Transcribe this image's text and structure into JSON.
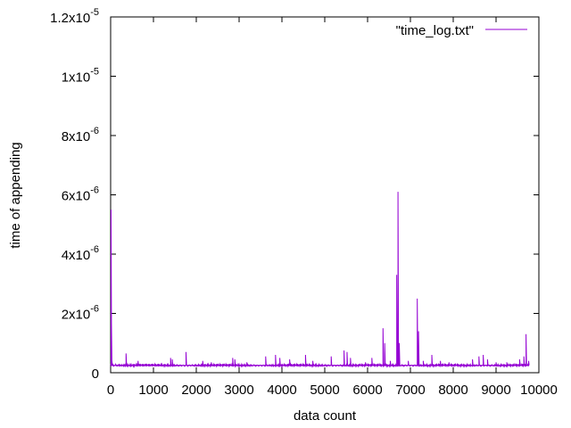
{
  "chart_data": {
    "type": "line",
    "xlabel": "data count",
    "ylabel": "time of appending",
    "xlim": [
      0,
      10000
    ],
    "ylim": [
      0,
      1.2e-05
    ],
    "xticks": [
      {
        "value": 0,
        "label": "0"
      },
      {
        "value": 1000,
        "label": "1000"
      },
      {
        "value": 2000,
        "label": "2000"
      },
      {
        "value": 3000,
        "label": "3000"
      },
      {
        "value": 4000,
        "label": "4000"
      },
      {
        "value": 5000,
        "label": "5000"
      },
      {
        "value": 6000,
        "label": "6000"
      },
      {
        "value": 7000,
        "label": "7000"
      },
      {
        "value": 8000,
        "label": "8000"
      },
      {
        "value": 9000,
        "label": "9000"
      },
      {
        "value": 10000,
        "label": "10000"
      }
    ],
    "yticks": [
      {
        "value": 0,
        "mant": "0",
        "exp": ""
      },
      {
        "value": 2e-06,
        "mant": "2x10",
        "exp": "-6"
      },
      {
        "value": 4e-06,
        "mant": "4x10",
        "exp": "-6"
      },
      {
        "value": 6e-06,
        "mant": "6x10",
        "exp": "-6"
      },
      {
        "value": 8e-06,
        "mant": "8x10",
        "exp": "-6"
      },
      {
        "value": 1e-05,
        "mant": "1x10",
        "exp": "-5"
      },
      {
        "value": 1.2e-05,
        "mant": "1.2x10",
        "exp": "-5"
      }
    ],
    "legend_position": "top-right",
    "grid": false,
    "series": [
      {
        "name": "\"time_log.txt\"",
        "color": "#9400d3",
        "baseline": 2.5e-07,
        "points": [
          [
            0,
            3e-07
          ],
          [
            10,
            5.5e-06
          ],
          [
            18,
            1.8e-06
          ],
          [
            30,
            4e-07
          ],
          [
            50,
            3e-07
          ],
          [
            120,
            2.8e-07
          ],
          [
            200,
            3e-07
          ],
          [
            300,
            2.6e-07
          ],
          [
            360,
            6.5e-07
          ],
          [
            380,
            2.6e-07
          ],
          [
            640,
            4e-07
          ],
          [
            700,
            2.6e-07
          ],
          [
            1400,
            5e-07
          ],
          [
            1440,
            4.5e-07
          ],
          [
            1760,
            7e-07
          ],
          [
            2150,
            4e-07
          ],
          [
            2350,
            3.5e-07
          ],
          [
            2850,
            5e-07
          ],
          [
            2900,
            4.5e-07
          ],
          [
            3180,
            3.5e-07
          ],
          [
            3620,
            5.5e-07
          ],
          [
            3850,
            6e-07
          ],
          [
            3950,
            5e-07
          ],
          [
            4180,
            4.5e-07
          ],
          [
            4550,
            6e-07
          ],
          [
            4720,
            4e-07
          ],
          [
            5150,
            5.5e-07
          ],
          [
            5450,
            7.5e-07
          ],
          [
            5520,
            7e-07
          ],
          [
            5600,
            5e-07
          ],
          [
            5950,
            3.5e-07
          ],
          [
            6100,
            5e-07
          ],
          [
            6360,
            1.5e-06
          ],
          [
            6400,
            1e-06
          ],
          [
            6530,
            4e-07
          ],
          [
            6680,
            3.3e-06
          ],
          [
            6710,
            6.1e-06
          ],
          [
            6740,
            1e-06
          ],
          [
            6950,
            4e-07
          ],
          [
            7160,
            2.5e-06
          ],
          [
            7190,
            1.4e-06
          ],
          [
            7300,
            4e-07
          ],
          [
            7500,
            6e-07
          ],
          [
            7700,
            4e-07
          ],
          [
            7900,
            3.5e-07
          ],
          [
            8100,
            3e-07
          ],
          [
            8450,
            4.5e-07
          ],
          [
            8600,
            5.5e-07
          ],
          [
            8700,
            6e-07
          ],
          [
            8800,
            4.5e-07
          ],
          [
            9000,
            3.5e-07
          ],
          [
            9250,
            3.5e-07
          ],
          [
            9550,
            4.5e-07
          ],
          [
            9650,
            5.5e-07
          ],
          [
            9700,
            1.3e-06
          ],
          [
            9760,
            4e-07
          ]
        ]
      }
    ]
  }
}
